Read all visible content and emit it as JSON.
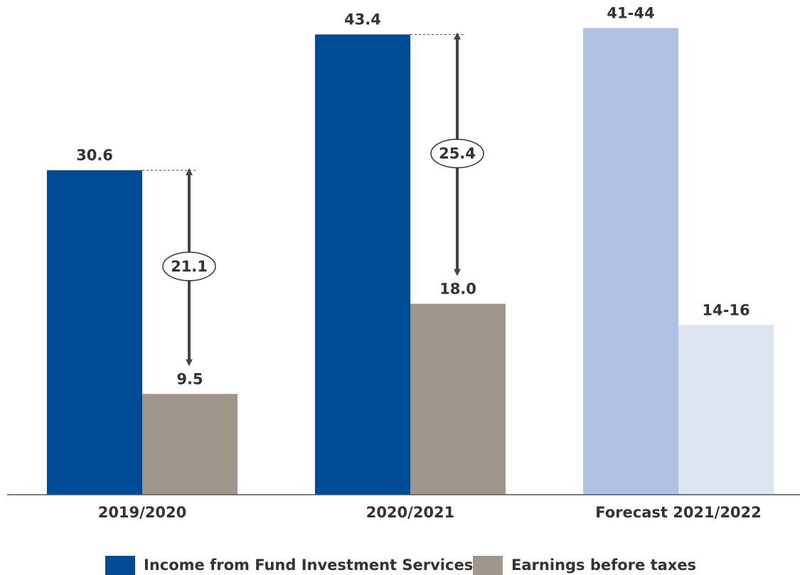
{
  "chart_data": {
    "type": "bar",
    "categories": [
      "2019/2020",
      "2020/2021",
      "Forecast 2021/2022"
    ],
    "series": [
      {
        "name": "Income from Fund Investment Services",
        "color": "#004b96",
        "forecast_color": "#adc1e2",
        "values": [
          30.6,
          43.4,
          [
            41,
            44
          ]
        ],
        "value_labels": [
          "30.6",
          "43.4",
          "41-44"
        ]
      },
      {
        "name": "Earnings before taxes",
        "color": "#a0978b",
        "forecast_color": "#dde4ef",
        "values": [
          9.5,
          18.0,
          [
            14,
            16
          ]
        ],
        "value_labels": [
          "9.5",
          "18.0",
          "14-16"
        ]
      }
    ],
    "differences": [
      21.1,
      25.4
    ]
  }
}
